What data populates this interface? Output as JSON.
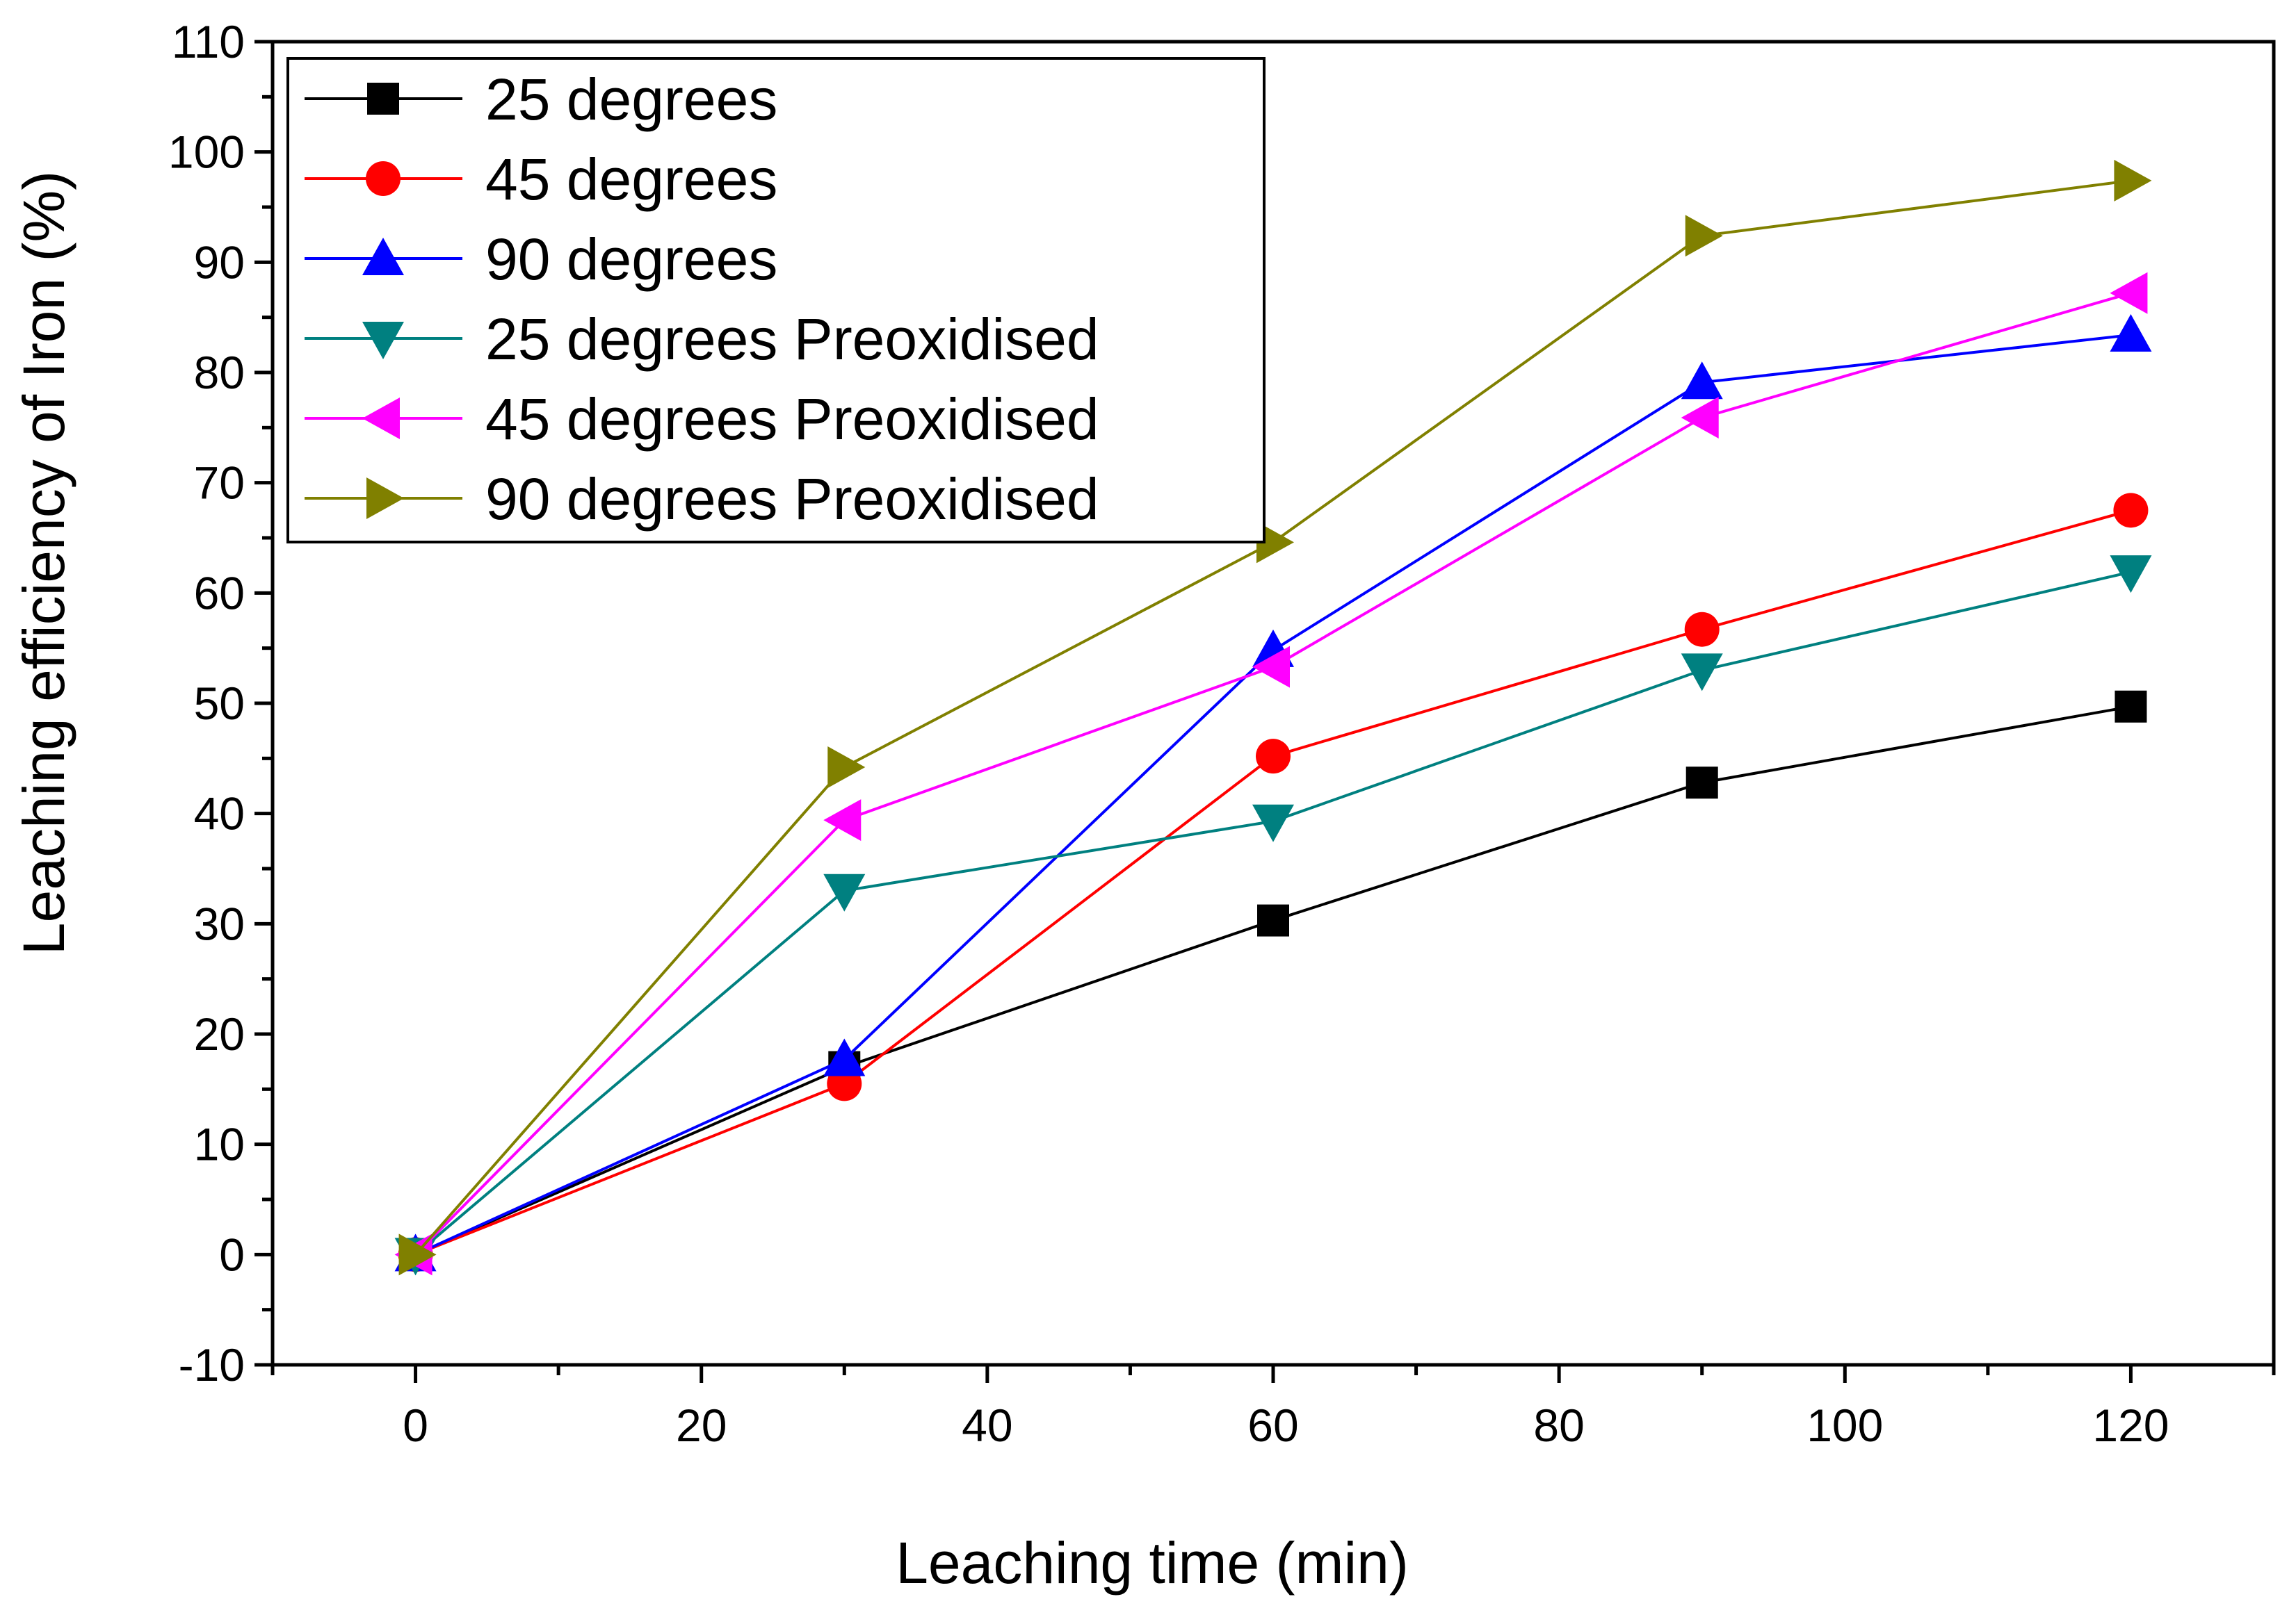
{
  "chart_data": {
    "type": "line",
    "title": "",
    "xlabel": "Leaching time (min)",
    "ylabel": "Leaching efficiency of Iron (%)",
    "xlim": [
      -10,
      130
    ],
    "ylim": [
      -10,
      110
    ],
    "xticks": [
      0,
      20,
      40,
      60,
      80,
      100,
      120
    ],
    "yticks": [
      -10,
      0,
      10,
      20,
      30,
      40,
      50,
      60,
      70,
      80,
      90,
      100,
      110
    ],
    "x": [
      0,
      30,
      60,
      90,
      120
    ],
    "legend_position": "top-left",
    "series": [
      {
        "name": "25 degrees",
        "color": "#000000",
        "marker": "square",
        "values": [
          0,
          17,
          30.3,
          42.8,
          49.7
        ]
      },
      {
        "name": "45 degrees",
        "color": "#ff0000",
        "marker": "circle",
        "values": [
          0,
          15.5,
          45.2,
          56.7,
          67.5
        ]
      },
      {
        "name": "90 degrees",
        "color": "#0000ff",
        "marker": "triangle-up",
        "values": [
          0,
          17.7,
          54.8,
          79.1,
          83.4
        ]
      },
      {
        "name": "25 degrees Preoxidised",
        "color": "#008080",
        "marker": "triangle-down",
        "values": [
          0,
          33,
          39.3,
          53,
          61.9
        ]
      },
      {
        "name": "45 degrees Preoxidised",
        "color": "#ff00ff",
        "marker": "triangle-left",
        "values": [
          0,
          39.4,
          53.3,
          75.9,
          87.2
        ]
      },
      {
        "name": "90 degrees Preoxidised",
        "color": "#808000",
        "marker": "triangle-right",
        "values": [
          0,
          44.2,
          64.6,
          92.4,
          97.4
        ]
      }
    ]
  }
}
